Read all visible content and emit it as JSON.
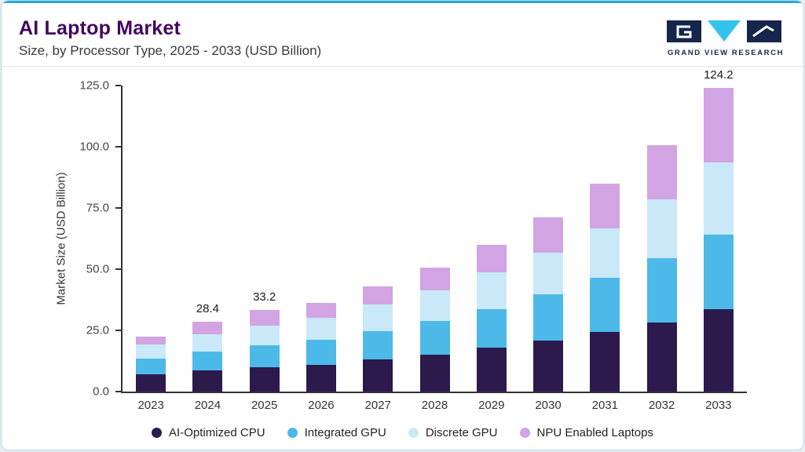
{
  "header": {
    "title": "AI Laptop Market",
    "subtitle": "Size, by Processor Type, 2025 - 2033 (USD Billion)"
  },
  "logo": {
    "text": "GRAND VIEW RESEARCH",
    "navy": "#15254c",
    "cyan": "#33c3ea"
  },
  "chart_data": {
    "type": "bar",
    "stacked": true,
    "title": "AI Laptop Market",
    "ylabel": "Market Size (USD Billion)",
    "ylim": [
      0,
      125
    ],
    "yticks": [
      "0.0",
      "25.0",
      "50.0",
      "75.0",
      "100.0",
      "125.0"
    ],
    "grid": false,
    "legend_position": "bottom",
    "categories": [
      "2023",
      "2024",
      "2025",
      "2026",
      "2027",
      "2028",
      "2029",
      "2030",
      "2031",
      "2032",
      "2033"
    ],
    "series": [
      {
        "name": "AI-Optimized CPU",
        "color": "#2c1a4d",
        "values": [
          7.0,
          8.5,
          9.8,
          11.0,
          13.0,
          15.0,
          17.8,
          20.8,
          24.2,
          28.2,
          33.5
        ]
      },
      {
        "name": "Integrated GPU",
        "color": "#4cb9e8",
        "values": [
          6.5,
          7.8,
          9.0,
          10.0,
          11.8,
          13.8,
          16.0,
          18.8,
          22.2,
          26.2,
          30.5
        ]
      },
      {
        "name": "Discrete GPU",
        "color": "#c9e9f8",
        "values": [
          5.8,
          7.0,
          8.2,
          9.0,
          10.7,
          12.5,
          14.8,
          17.0,
          20.4,
          24.2,
          29.5
        ]
      },
      {
        "name": "NPU Enabled Laptops",
        "color": "#d2a4e4",
        "values": [
          3.0,
          5.1,
          6.2,
          6.2,
          7.5,
          9.5,
          11.5,
          14.6,
          18.0,
          22.0,
          30.7
        ]
      }
    ],
    "total_labels": [
      "",
      "28.4",
      "33.2",
      "",
      "",
      "",
      "",
      "",
      "",
      "",
      "124.2"
    ]
  }
}
